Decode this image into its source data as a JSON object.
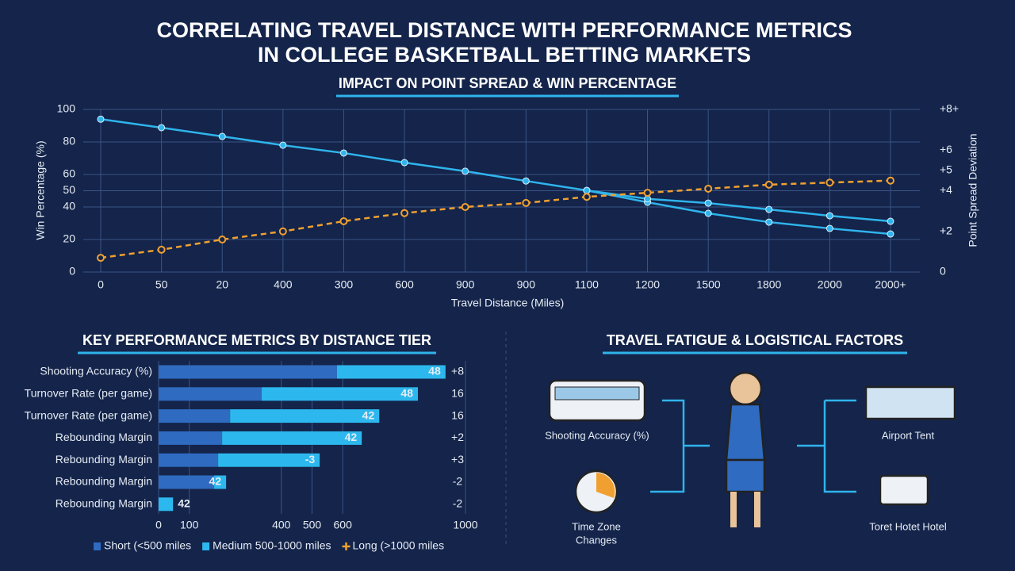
{
  "header": {
    "title_lines": [
      "CORRELATING TRAVEL DISTANCE WITH PERFORMANCE METRICS",
      "IN COLLEGE BASKETBALL BETTING MARKETS"
    ]
  },
  "chart_data": [
    {
      "type": "line",
      "title": "IMPACT ON POINT SPREAD & WIN PERCENTAGE",
      "x_label": "Travel Distance (Miles)",
      "y_label": "Win Percentage (%)",
      "y2_label": "Point Spread Deviation",
      "categories": [
        "0",
        "50",
        "20",
        "400",
        "300",
        "600",
        "900",
        "900",
        "1100",
        "1200",
        "1500",
        "1800",
        "2000",
        "2000+"
      ],
      "series": [
        {
          "color": "#2fb4ec",
          "values": [
            94,
            88.8,
            83.4,
            78,
            73.2,
            67.3,
            62,
            56,
            50.2,
            42.9,
            36.1,
            30.7,
            26.8,
            23.4
          ]
        },
        {
          "color": "#2fb4ec",
          "values": [
            null,
            null,
            null,
            null,
            null,
            null,
            null,
            null,
            50.2,
            45,
            42.4,
            38.5,
            34.6,
            31.2
          ]
        },
        {
          "color": "#f0a030",
          "axis": "y2",
          "dashed": true,
          "values": [
            0.7,
            1.1,
            1.6,
            2,
            2.5,
            2.9,
            3.2,
            3.4,
            3.7,
            3.9,
            4.1,
            4.3,
            4.4,
            4.5
          ]
        }
      ],
      "ylim": [
        0,
        100
      ],
      "yticks": [
        0,
        20,
        40,
        50,
        60,
        80,
        100
      ],
      "y2lim": [
        0,
        8
      ],
      "y2ticks": [
        {
          "value": 8,
          "label": "+8+"
        },
        {
          "value": 6,
          "label": "+6"
        },
        {
          "value": 4,
          "label": "+4"
        },
        {
          "value": 5,
          "label": "+5"
        },
        {
          "value": 2,
          "label": "+2"
        },
        {
          "value": 2,
          "label": "+2"
        },
        0
      ],
      "grid": true
    },
    {
      "type": "bar",
      "orientation": "horizontal",
      "stacked": true,
      "title": "KEY PERFORMANCE METRICS BY DISTANCE TIER",
      "categories": [
        "Shooting Accuracy (%)",
        "Turnover Rate (per game)",
        "Turnover Rate (per game)",
        "Rebounding Margin",
        "Rebounding Margin",
        "Rebounding Margin",
        "Rebounding Margin"
      ],
      "series": [
        {
          "name": "Short (<500 miles",
          "color": "#2f6bc0",
          "values": [
            581,
            336,
            233,
            207,
            194,
            181,
            0
          ]
        },
        {
          "name": "Medium 500-1000 miles",
          "color": "#2cb8ee",
          "values": [
            354,
            509,
            486,
            455,
            331,
            39,
            47
          ]
        },
        {
          "name": "Long (>1000 miles",
          "color": "#f0a030",
          "marker": "plus",
          "values": [
            null,
            null,
            null,
            null,
            null,
            null,
            null
          ]
        }
      ],
      "bar_labels": [
        "48",
        "48",
        "42",
        "42",
        "-3",
        "42",
        "42"
      ],
      "side_labels": [
        "+8",
        "16",
        "16",
        "+2",
        "+3",
        "-2",
        "-2"
      ],
      "xlim": [
        0,
        1000
      ],
      "xticks": [
        0,
        100,
        400,
        500,
        600,
        1000
      ],
      "legend": "bottom"
    }
  ],
  "diagram": {
    "title": "TRAVEL FATIGUE & LOGISTICAL FACTORS",
    "nodes": [
      {
        "label": "Shooting Accuracy (%)"
      },
      {
        "label_lines": [
          "Time Zone",
          "Changes"
        ]
      },
      {
        "label": "Airport Tent"
      },
      {
        "label": "Toret Hotet Hotel"
      }
    ]
  }
}
